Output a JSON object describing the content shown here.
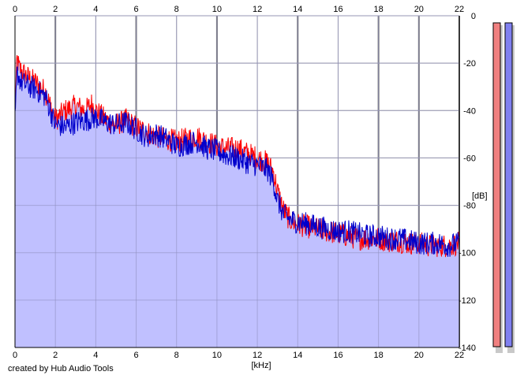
{
  "credit": "created by Hub Audio Tools",
  "chart_data": {
    "type": "line",
    "xlabel": "[kHz]",
    "ylabel": "[dB]",
    "xlim": [
      0,
      22
    ],
    "ylim": [
      -140,
      0
    ],
    "x_ticks": [
      "0",
      "2",
      "4",
      "6",
      "8",
      "10",
      "12",
      "14",
      "16",
      "18",
      "20",
      "22"
    ],
    "y_ticks": [
      "0",
      "-20",
      "-40",
      "-60",
      "-80",
      "-100",
      "-120",
      "-140"
    ],
    "grid": true,
    "fill_color": "#c0c0ff",
    "series": [
      {
        "color": "#ff0000",
        "x": [
          0,
          0.1,
          0.2,
          0.5,
          1,
          1.5,
          2,
          2.5,
          3,
          3.5,
          3.8,
          4,
          4.5,
          5,
          5.5,
          6,
          6.5,
          7,
          7.5,
          8,
          8.5,
          9,
          9.5,
          10,
          10.5,
          11,
          11.5,
          12,
          12.5,
          12.8,
          13,
          13.3,
          13.6,
          14,
          14.5,
          15,
          15.5,
          16,
          16.5,
          17,
          17.5,
          18,
          18.5,
          19,
          19.5,
          20,
          20.5,
          21,
          21.5,
          22
        ],
        "y": [
          -40,
          -18,
          -22,
          -25,
          -28,
          -32,
          -44,
          -40,
          -38,
          -40,
          -37,
          -40,
          -44,
          -46,
          -44,
          -47,
          -49,
          -51,
          -52,
          -53,
          -52,
          -51,
          -53,
          -55,
          -56,
          -56,
          -58,
          -60,
          -62,
          -66,
          -74,
          -82,
          -86,
          -88,
          -89,
          -90,
          -91,
          -92,
          -93,
          -94,
          -94,
          -94,
          -95,
          -95,
          -96,
          -96,
          -97,
          -97,
          -97,
          -96
        ]
      },
      {
        "color": "#0000cc",
        "x": [
          0,
          0.1,
          0.3,
          0.5,
          1,
          1.5,
          2,
          2.5,
          3,
          3.5,
          4,
          4.5,
          5,
          5.5,
          6,
          6.5,
          7,
          7.5,
          8,
          8.5,
          9,
          9.5,
          10,
          10.5,
          11,
          11.5,
          12,
          12.5,
          12.8,
          13,
          13.3,
          13.6,
          14,
          14.5,
          15,
          15.5,
          16,
          16.5,
          17,
          17.5,
          18,
          18.5,
          19,
          19.5,
          20,
          20.5,
          21,
          21.5,
          22
        ],
        "y": [
          -45,
          -24,
          -28,
          -29,
          -31,
          -34,
          -46,
          -47,
          -45,
          -44,
          -43,
          -45,
          -46,
          -45,
          -48,
          -51,
          -50,
          -52,
          -55,
          -54,
          -53,
          -56,
          -57,
          -59,
          -60,
          -62,
          -63,
          -65,
          -70,
          -78,
          -84,
          -86,
          -87,
          -88,
          -89,
          -90,
          -91,
          -91,
          -92,
          -93,
          -93,
          -94,
          -94,
          -95,
          -96,
          -96,
          -96,
          -97,
          -96
        ]
      }
    ],
    "level_meters": [
      {
        "color": "#f08080"
      },
      {
        "color": "#8080f0"
      }
    ]
  }
}
